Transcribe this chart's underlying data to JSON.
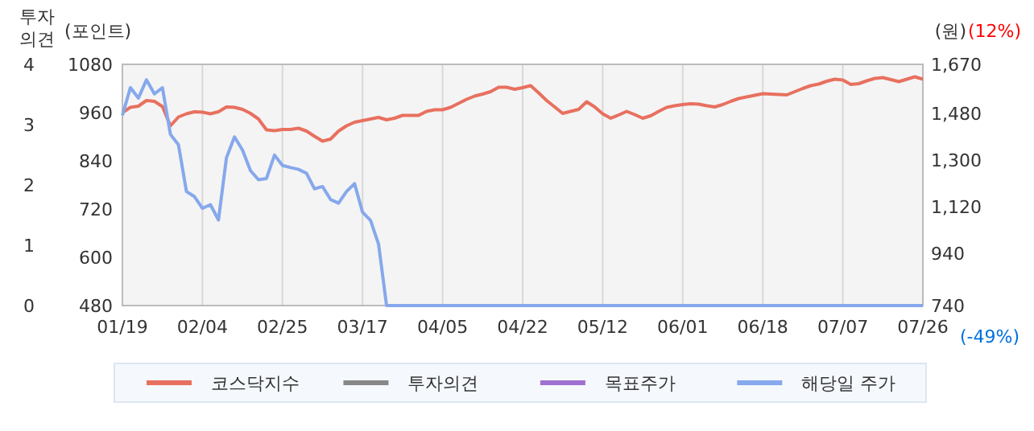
{
  "chart_data": {
    "type": "line",
    "categories": [
      "01/19",
      null,
      null,
      null,
      null,
      null,
      null,
      null,
      null,
      null,
      "02/04",
      null,
      null,
      null,
      null,
      null,
      null,
      null,
      null,
      null,
      "02/25",
      null,
      null,
      null,
      null,
      null,
      null,
      null,
      null,
      null,
      "03/17",
      null,
      null,
      null,
      null,
      null,
      null,
      null,
      null,
      null,
      "04/05",
      null,
      null,
      null,
      null,
      null,
      null,
      null,
      null,
      null,
      "04/22",
      null,
      null,
      null,
      null,
      null,
      null,
      null,
      null,
      null,
      "05/12",
      null,
      null,
      null,
      null,
      null,
      null,
      null,
      null,
      null,
      "06/01",
      null,
      null,
      null,
      null,
      null,
      null,
      null,
      null,
      null,
      "06/18",
      null,
      null,
      null,
      null,
      null,
      null,
      null,
      null,
      null,
      "07/07",
      null,
      null,
      null,
      null,
      null,
      null,
      null,
      null,
      null,
      "07/26"
    ],
    "ylabel": "(포인트)",
    "ylim": [
      480,
      1080
    ],
    "yticks": [
      480,
      600,
      720,
      840,
      960,
      1080
    ],
    "y2label": "(원)",
    "y2lim": [
      740,
      1670
    ],
    "y2ticks": [
      740,
      940,
      {
        "value": 1120,
        "label": "1,120"
      },
      {
        "value": 1300,
        "label": "1,300"
      },
      {
        "value": 1480,
        "label": "1,480"
      },
      {
        "value": 1670,
        "label": "1,670"
      }
    ],
    "y3label": "투자의견",
    "y3lim": [
      0,
      4
    ],
    "y3ticks": [
      0,
      1,
      2,
      3,
      4
    ],
    "annotations": [
      "(12%)",
      "(-49%)"
    ],
    "grid": "x",
    "legend": "bottom",
    "series": [
      {
        "name": "코스닥지수",
        "color": "#e8705f",
        "values": [
          960,
          973,
          976,
          990,
          988,
          975,
          927,
          949,
          957,
          962,
          961,
          957,
          962,
          974,
          973,
          968,
          958,
          944,
          917,
          915,
          918,
          918,
          921,
          914,
          901,
          889,
          894,
          914,
          927,
          936,
          940,
          944,
          948,
          942,
          946,
          953,
          953,
          953,
          963,
          967,
          967,
          973,
          983,
          993,
          1001,
          1006,
          1012,
          1023,
          1023,
          1018,
          1022,
          1027,
          1009,
          990,
          974,
          958,
          963,
          968,
          987,
          974,
          957,
          946,
          954,
          963,
          955,
          946,
          952,
          963,
          973,
          977,
          980,
          982,
          981,
          977,
          974,
          980,
          988,
          995,
          999,
          1003,
          1007,
          1006,
          1005,
          1004,
          1012,
          1020,
          1027,
          1031,
          1038,
          1043,
          1041,
          1030,
          1032,
          1039,
          1045,
          1047,
          1042,
          1037,
          1043,
          1049,
          1043
        ]
      },
      {
        "name": "투자의견",
        "color": "#888888",
        "axis": "y3",
        "values": [
          null,
          null,
          null,
          null,
          null,
          null,
          null,
          null,
          null,
          null,
          null,
          null,
          null,
          null,
          null,
          null,
          null,
          null,
          null,
          null,
          null,
          null,
          null,
          null,
          null,
          null,
          null,
          null,
          null,
          null,
          null,
          null,
          null,
          null,
          null,
          null,
          null,
          null,
          null,
          null,
          null,
          null,
          null,
          null,
          null,
          null,
          null,
          null,
          null,
          null,
          null,
          null,
          null,
          null,
          null,
          null,
          null,
          null,
          null,
          null,
          null,
          null,
          null,
          null,
          null,
          null,
          null,
          null,
          null,
          null,
          null,
          null,
          null,
          null,
          null,
          null,
          null,
          null,
          null,
          null,
          null,
          null,
          null,
          null,
          null,
          null,
          null,
          null,
          null,
          null,
          null,
          null,
          null,
          null,
          null,
          null,
          null,
          null,
          null,
          null,
          null
        ]
      },
      {
        "name": "목표주가",
        "color": "#a070d0",
        "axis": "y2",
        "values": [
          null,
          null,
          null,
          null,
          null,
          null,
          null,
          null,
          null,
          null,
          null,
          null,
          null,
          null,
          null,
          null,
          null,
          null,
          null,
          null,
          null,
          null,
          null,
          null,
          null,
          null,
          null,
          null,
          null,
          null,
          null,
          null,
          null,
          null,
          null,
          null,
          null,
          null,
          null,
          null,
          null,
          null,
          null,
          null,
          null,
          null,
          null,
          null,
          null,
          null,
          null,
          null,
          null,
          null,
          null,
          null,
          null,
          null,
          null,
          null,
          null,
          null,
          null,
          null,
          null,
          null,
          null,
          null,
          null,
          null,
          null,
          null,
          null,
          null,
          null,
          null,
          null,
          null,
          null,
          null,
          null,
          null,
          null,
          null,
          null,
          null,
          null,
          null,
          null,
          null,
          null,
          null,
          null,
          null,
          null,
          null,
          null,
          null,
          null,
          null,
          null
        ]
      },
      {
        "name": "해당일 주가",
        "color": "#86a8ec",
        "axis": "y2",
        "values": [
          1473,
          1580,
          1540,
          1610,
          1556,
          1580,
          1400,
          1360,
          1180,
          1160,
          1115,
          1129,
          1070,
          1310,
          1390,
          1340,
          1260,
          1225,
          1230,
          1320,
          1280,
          1272,
          1265,
          1250,
          1190,
          1199,
          1149,
          1135,
          1180,
          1210,
          1100,
          1068,
          977,
          740,
          740,
          740,
          740,
          740,
          740,
          740,
          740,
          740,
          740,
          740,
          740,
          740,
          740,
          740,
          740,
          740,
          740,
          740,
          740,
          740,
          740,
          740,
          740,
          740,
          740,
          740,
          740,
          740,
          740,
          740,
          740,
          740,
          740,
          740,
          740,
          740,
          740,
          740,
          740,
          740,
          740,
          740,
          740,
          740,
          740,
          740,
          740,
          740,
          740,
          740,
          740,
          740,
          740,
          740,
          740,
          740,
          740,
          740,
          740,
          740,
          740,
          740,
          740,
          740,
          740,
          740,
          740
        ]
      }
    ]
  }
}
